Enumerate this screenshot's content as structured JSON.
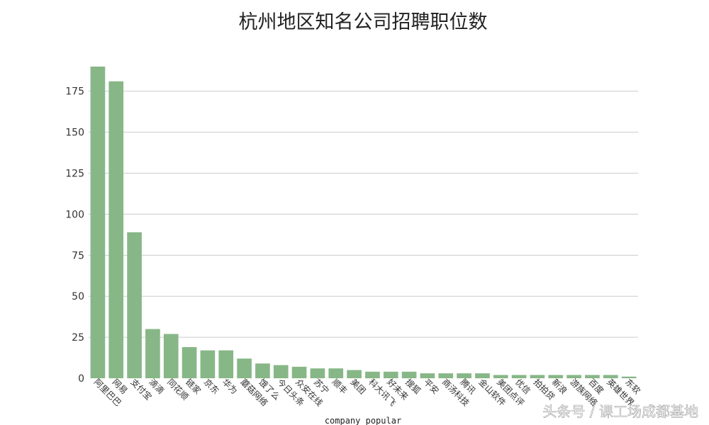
{
  "chart_data": {
    "type": "bar",
    "title": "杭州地区知名公司招聘职位数",
    "xlabel": "company popular",
    "ylabel": "",
    "ylim": [
      0,
      190
    ],
    "yticks": [
      0,
      25,
      50,
      75,
      100,
      125,
      150,
      175
    ],
    "grid": "horizontal",
    "bar_color": "#87b787",
    "categories": [
      "阿里巴巴",
      "网易",
      "支付宝",
      "滴滴",
      "同花顺",
      "链家",
      "京东",
      "华为",
      "蘑菇网络",
      "饿了么",
      "今日头条",
      "众安在线",
      "苏宁",
      "顺丰",
      "美团",
      "科大讯飞",
      "好未来",
      "搜狐",
      "平安",
      "商汤科技",
      "腾讯",
      "金山软件",
      "美团点评",
      "优信",
      "拍拍贷",
      "新浪",
      "游族网络",
      "百度",
      "英雄世界",
      "东软"
    ],
    "values": [
      190,
      181,
      89,
      30,
      27,
      19,
      17,
      17,
      12,
      9,
      8,
      7,
      6,
      6,
      5,
      4,
      4,
      4,
      3,
      3,
      3,
      3,
      2,
      2,
      2,
      2,
      2,
      2,
      2,
      1
    ]
  },
  "watermark": "头条号 / 课工场成都基地"
}
